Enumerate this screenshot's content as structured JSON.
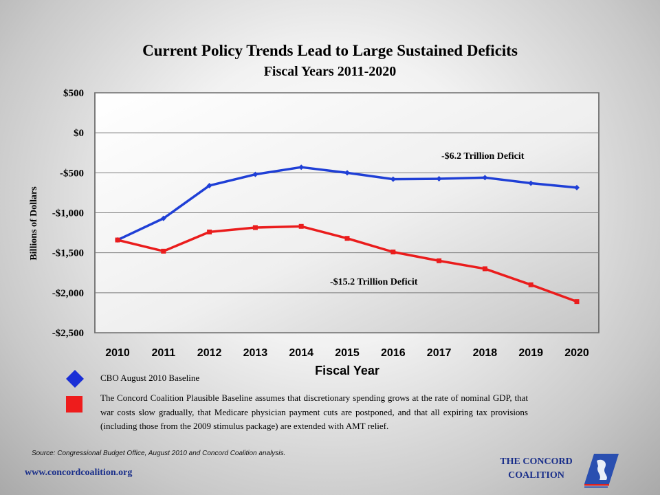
{
  "chart_data": {
    "type": "line",
    "title": "Current Policy Trends Lead to Large Sustained Deficits",
    "subtitle": "Fiscal Years 2011-2020",
    "xlabel": "Fiscal Year",
    "ylabel": "Billions of Dollars",
    "ylim": [
      -2500,
      500
    ],
    "yticks": [
      500,
      0,
      -500,
      -1000,
      -1500,
      -2000,
      -2500
    ],
    "ytick_labels": [
      "$500",
      "$0",
      "-$500",
      "-$1,000",
      "-$1,500",
      "-$2,000",
      "-$2,500"
    ],
    "categories": [
      "2010",
      "2011",
      "2012",
      "2013",
      "2014",
      "2015",
      "2016",
      "2017",
      "2018",
      "2019",
      "2020"
    ],
    "grid": true,
    "series": [
      {
        "name": "CBO August 2010 Baseline",
        "color": "#1f3fd6",
        "marker": "diamond",
        "values": [
          -1340,
          -1070,
          -660,
          -520,
          -430,
          -500,
          -580,
          -575,
          -560,
          -630,
          -685
        ]
      },
      {
        "name": "The Concord Coalition Plausible Baseline",
        "color": "#ea1c1c",
        "marker": "square",
        "values": [
          -1340,
          -1480,
          -1240,
          -1185,
          -1170,
          -1320,
          -1490,
          -1600,
          -1700,
          -1900,
          -2110
        ]
      }
    ],
    "annotations": [
      {
        "text": "-$6.2 Trillion Deficit",
        "series": 0
      },
      {
        "text": "-$15.2 Trillion Deficit",
        "series": 1
      }
    ]
  },
  "legend": {
    "item1": "CBO August 2010 Baseline",
    "item2": "The Concord Coalition Plausible Baseline assumes that discretionary spending grows at the rate of nominal GDP, that war costs slow gradually, that Medicare physician payment cuts are postponed, and that all expiring tax provisions (including those from the 2009 stimulus package) are extended with AMT relief."
  },
  "source": "Source:  Congressional Budget Office, August 2010 and Concord Coalition analysis.",
  "url": "www.concordcoalition.org",
  "logo": {
    "line1": "THE CONCORD",
    "line2": "COALITION"
  }
}
